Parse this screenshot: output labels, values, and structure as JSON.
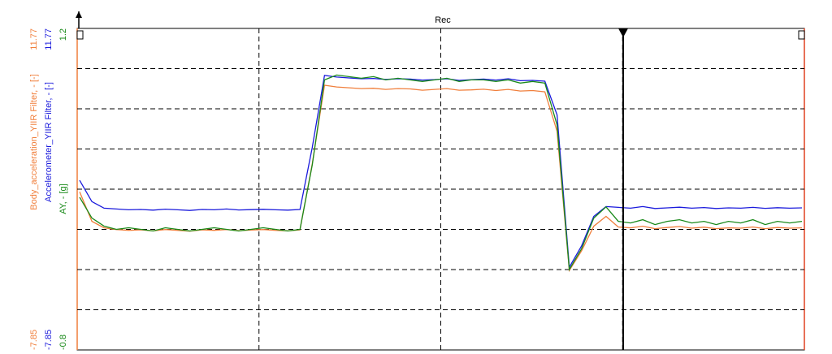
{
  "chart_data": {
    "type": "line",
    "title": "Rec",
    "grid": true,
    "series": [
      {
        "name": "Body_acceleration_YIIR Filter, - [-]",
        "color": "#f07f3c",
        "ylim": [
          -7.85,
          11.77
        ],
        "yticks": [
          -7.85,
          11.77
        ],
        "values": [
          1.8,
          0.0,
          -0.4,
          -0.5,
          -0.55,
          -0.52,
          -0.58,
          -0.5,
          -0.55,
          -0.6,
          -0.52,
          -0.55,
          -0.5,
          -0.57,
          -0.53,
          -0.5,
          -0.55,
          -0.58,
          -0.52,
          3.5,
          8.3,
          8.2,
          8.15,
          8.1,
          8.12,
          8.05,
          8.1,
          8.08,
          8.0,
          8.05,
          8.1,
          8.0,
          8.02,
          8.06,
          7.98,
          8.05,
          7.95,
          7.98,
          7.9,
          5.5,
          -3.0,
          -1.8,
          -0.3,
          0.3,
          -0.35,
          -0.4,
          -0.3,
          -0.45,
          -0.38,
          -0.32,
          -0.42,
          -0.36,
          -0.45,
          -0.4,
          -0.42,
          -0.35,
          -0.45,
          -0.38,
          -0.42,
          -0.4
        ]
      },
      {
        "name": "Accelerometer_YIIR Filter, - [-]",
        "color": "#1a1adc",
        "ylim": [
          -7.85,
          11.77
        ],
        "yticks": [
          -7.85,
          11.77
        ],
        "values": [
          2.5,
          1.2,
          0.8,
          0.75,
          0.7,
          0.72,
          0.68,
          0.74,
          0.7,
          0.66,
          0.72,
          0.7,
          0.75,
          0.69,
          0.71,
          0.73,
          0.7,
          0.68,
          0.72,
          4.5,
          8.9,
          8.8,
          8.75,
          8.7,
          8.72,
          8.66,
          8.7,
          8.68,
          8.62,
          8.65,
          8.7,
          8.6,
          8.64,
          8.68,
          8.62,
          8.7,
          8.58,
          8.6,
          8.55,
          6.5,
          -2.8,
          -1.5,
          0.3,
          0.9,
          0.85,
          0.8,
          0.9,
          0.78,
          0.82,
          0.86,
          0.8,
          0.84,
          0.78,
          0.82,
          0.8,
          0.85,
          0.79,
          0.83,
          0.8,
          0.82
        ]
      },
      {
        "name": "AY, - [g]",
        "color": "#1a8a1a",
        "ylim": [
          -0.8,
          1.2
        ],
        "yticks": [
          -0.8,
          1.2
        ],
        "values": [
          0.15,
          0.02,
          -0.03,
          -0.05,
          -0.04,
          -0.05,
          -0.06,
          -0.04,
          -0.05,
          -0.06,
          -0.05,
          -0.04,
          -0.05,
          -0.06,
          -0.05,
          -0.04,
          -0.05,
          -0.06,
          -0.05,
          0.35,
          0.88,
          0.91,
          0.9,
          0.89,
          0.9,
          0.88,
          0.89,
          0.88,
          0.87,
          0.88,
          0.89,
          0.87,
          0.88,
          0.88,
          0.87,
          0.88,
          0.86,
          0.87,
          0.86,
          0.6,
          -0.3,
          -0.17,
          0.02,
          0.09,
          0.0,
          -0.01,
          0.01,
          -0.02,
          0.0,
          0.01,
          -0.01,
          0.0,
          -0.02,
          0.0,
          -0.01,
          0.01,
          -0.02,
          0.0,
          -0.01,
          0.0
        ]
      }
    ]
  }
}
